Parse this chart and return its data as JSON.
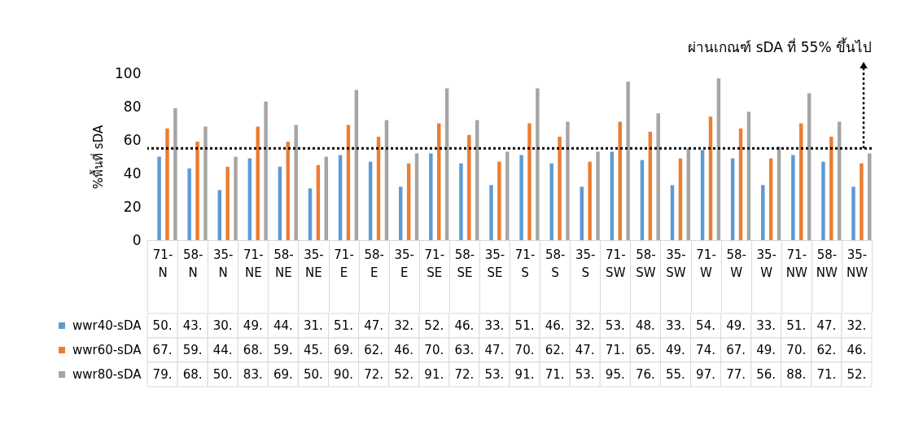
{
  "chart_data": {
    "type": "bar",
    "ylabel": "%พื้นที่ sDA",
    "categories": [
      "71-N",
      "58-N",
      "35-N",
      "71-NE",
      "58-NE",
      "35-NE",
      "71-E",
      "58-E",
      "35-E",
      "71-SE",
      "58-SE",
      "35-SE",
      "71-S",
      "58-S",
      "35-S",
      "71-SW",
      "58-SW",
      "35-SW",
      "71-W",
      "58-W",
      "35-W",
      "71-NW",
      "58-NW",
      "35-NW"
    ],
    "series": [
      {
        "name": "wwr40-sDA",
        "color": "#5b9bd5",
        "values": [
          50,
          43,
          30,
          49,
          44,
          31,
          51,
          47,
          32,
          52,
          46,
          33,
          51,
          46,
          32,
          53,
          48,
          33,
          54,
          49,
          33,
          51,
          47,
          32
        ],
        "value_labels": [
          "50.",
          "43.",
          "30.",
          "49.",
          "44.",
          "31.",
          "51.",
          "47.",
          "32.",
          "52.",
          "46.",
          "33.",
          "51.",
          "46.",
          "32.",
          "53.",
          "48.",
          "33.",
          "54.",
          "49.",
          "33.",
          "51.",
          "47.",
          "32."
        ]
      },
      {
        "name": "wwr60-sDA",
        "color": "#ed7d31",
        "values": [
          67,
          59,
          44,
          68,
          59,
          45,
          69,
          62,
          46,
          70,
          63,
          47,
          70,
          62,
          47,
          71,
          65,
          49,
          74,
          67,
          49,
          70,
          62,
          46
        ],
        "value_labels": [
          "67.",
          "59.",
          "44.",
          "68.",
          "59.",
          "45.",
          "69.",
          "62.",
          "46.",
          "70.",
          "63.",
          "47.",
          "70.",
          "62.",
          "47.",
          "71.",
          "65.",
          "49.",
          "74.",
          "67.",
          "49.",
          "70.",
          "62.",
          "46."
        ]
      },
      {
        "name": "wwr80-sDA",
        "color": "#a5a5a5",
        "values": [
          79,
          68,
          50,
          83,
          69,
          50,
          90,
          72,
          52,
          91,
          72,
          53,
          91,
          71,
          53,
          95,
          76,
          55,
          97,
          77,
          56,
          88,
          71,
          52
        ],
        "value_labels": [
          "79.",
          "68.",
          "50.",
          "83.",
          "69.",
          "50.",
          "90.",
          "72.",
          "52.",
          "91.",
          "72.",
          "53.",
          "91.",
          "71.",
          "53.",
          "95.",
          "76.",
          "55.",
          "97.",
          "77.",
          "56.",
          "88.",
          "71.",
          "52."
        ]
      }
    ],
    "ylim": [
      0,
      100
    ],
    "yticks": [
      0,
      20,
      40,
      60,
      80,
      100
    ],
    "grid": false,
    "legend": "bottom left",
    "ref_lines": [
      {
        "axis": "y",
        "value": 55,
        "label": "ผ่านเกณฑ์ sDA ที่ 55% ขึ้นไป",
        "color": "#000000",
        "line_style": "dotted"
      }
    ]
  }
}
